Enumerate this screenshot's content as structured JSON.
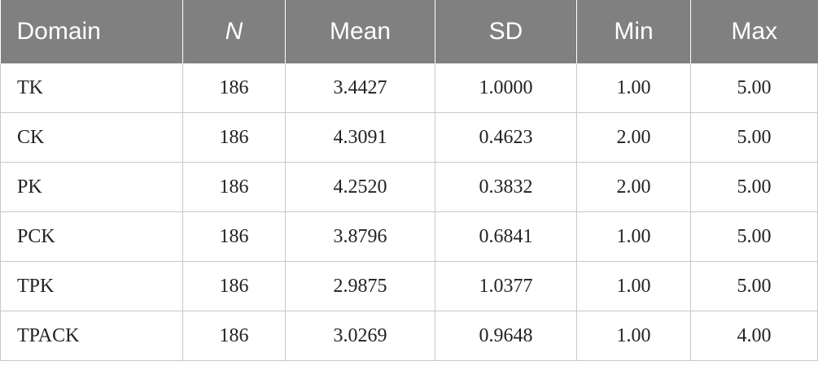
{
  "table": {
    "headers": [
      "Domain",
      "N",
      "Mean",
      "SD",
      "Min",
      "Max"
    ],
    "rows": [
      [
        "TK",
        "186",
        "3.4427",
        "1.0000",
        "1.00",
        "5.00"
      ],
      [
        "CK",
        "186",
        "4.3091",
        "0.4623",
        "2.00",
        "5.00"
      ],
      [
        "PK",
        "186",
        "4.2520",
        "0.3832",
        "2.00",
        "5.00"
      ],
      [
        "PCK",
        "186",
        "3.8796",
        "0.6841",
        "1.00",
        "5.00"
      ],
      [
        "TPK",
        "186",
        "2.9875",
        "1.0377",
        "1.00",
        "5.00"
      ],
      [
        "TPACK",
        "186",
        "3.0269",
        "0.9648",
        "1.00",
        "4.00"
      ]
    ]
  },
  "colors": {
    "header_bg": "#808080",
    "header_text": "#ffffff",
    "grid_line": "#c8c8c8",
    "body_text": "#222222"
  }
}
